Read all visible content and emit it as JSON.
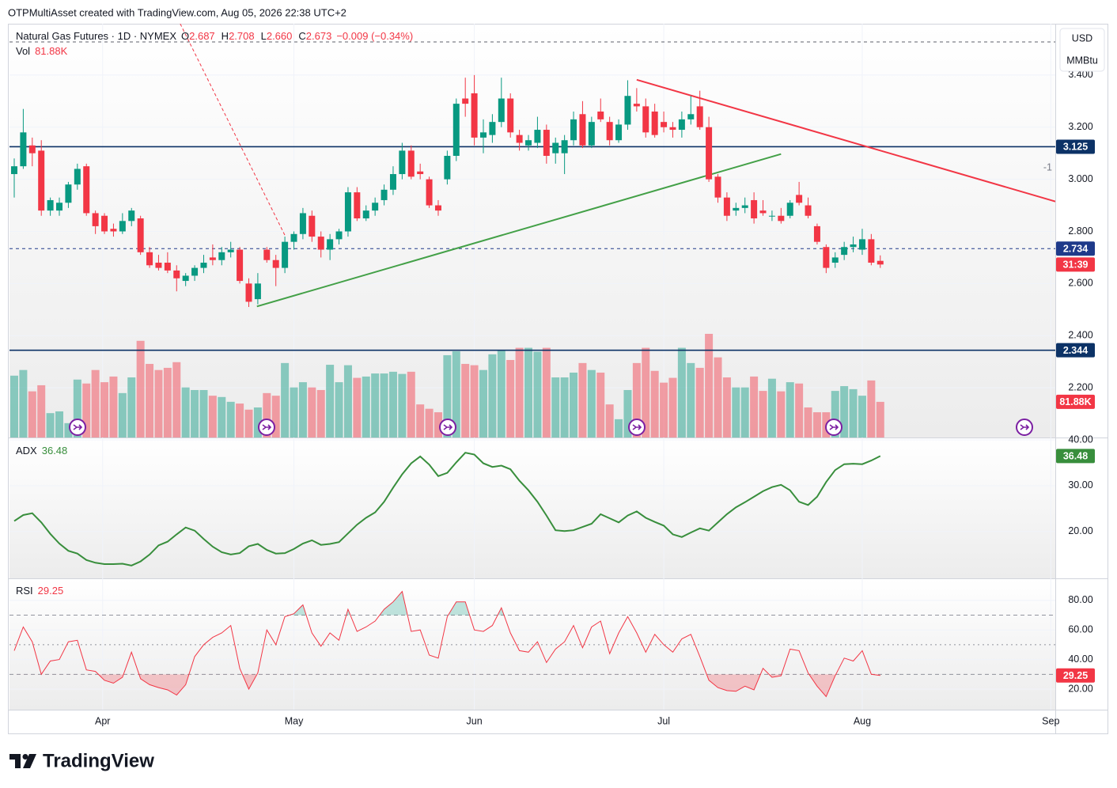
{
  "header": {
    "credit": "OTPMultiAsset created with TradingView.com, Aug 05, 2026 22:38 UTC+2"
  },
  "legend": {
    "symbol": "Natural Gas Futures · 1D · NYMEX",
    "fields": [
      [
        "O",
        "2.687"
      ],
      [
        "H",
        "2.708"
      ],
      [
        "L",
        "2.660"
      ],
      [
        "C",
        "2.673"
      ]
    ],
    "change": "−0.009 (−0.34%)"
  },
  "scale_units": [
    "USD",
    "MMBtu"
  ],
  "chart_data": [
    {
      "type": "candlestick",
      "up_color": "#089981",
      "down_color": "#f23645",
      "xlim": [
        -0.526,
        115.4
      ],
      "xticks": [
        {
          "value": 9.8,
          "label": "Apr"
        },
        {
          "value": 31,
          "label": "May"
        },
        {
          "value": 51,
          "label": "Jun"
        },
        {
          "value": 72,
          "label": "Jul"
        },
        {
          "value": 94,
          "label": "Aug"
        },
        {
          "value": 114.9,
          "label": "Sep"
        }
      ],
      "ylim": [
        2.009,
        3.597
      ],
      "yticks": [
        {
          "value": 3.4,
          "label": "3.400"
        },
        {
          "value": 3.2,
          "label": "3.200"
        },
        {
          "value": 3.0,
          "label": "3.000"
        },
        {
          "value": 2.8,
          "label": "2.800"
        },
        {
          "value": 2.6,
          "label": "2.600"
        },
        {
          "value": 2.4,
          "label": "2.400"
        },
        {
          "value": 2.2,
          "label": "2.200"
        }
      ],
      "side_note": "-1",
      "countdown": "31:39",
      "candles": [
        [
          3.02,
          3.08,
          2.93,
          3.05
        ],
        [
          3.05,
          3.27,
          3.04,
          3.18
        ],
        [
          3.13,
          3.16,
          3.05,
          3.1
        ],
        [
          3.11,
          3.15,
          2.86,
          2.88
        ],
        [
          2.88,
          2.93,
          2.86,
          2.92
        ],
        [
          2.88,
          2.93,
          2.86,
          2.91
        ],
        [
          2.91,
          2.99,
          2.89,
          2.98
        ],
        [
          2.98,
          3.06,
          2.96,
          3.04
        ],
        [
          3.05,
          3.06,
          2.86,
          2.87
        ],
        [
          2.87,
          2.88,
          2.79,
          2.82
        ],
        [
          2.86,
          2.87,
          2.79,
          2.8
        ],
        [
          2.81,
          2.83,
          2.78,
          2.8
        ],
        [
          2.8,
          2.87,
          2.79,
          2.84
        ],
        [
          2.84,
          2.89,
          2.82,
          2.88
        ],
        [
          2.85,
          2.86,
          2.71,
          2.72
        ],
        [
          2.72,
          2.74,
          2.66,
          2.67
        ],
        [
          2.68,
          2.71,
          2.65,
          2.66
        ],
        [
          2.68,
          2.72,
          2.64,
          2.65
        ],
        [
          2.65,
          2.67,
          2.57,
          2.62
        ],
        [
          2.61,
          2.64,
          2.59,
          2.63
        ],
        [
          2.63,
          2.67,
          2.61,
          2.66
        ],
        [
          2.66,
          2.71,
          2.64,
          2.68
        ],
        [
          2.7,
          2.75,
          2.67,
          2.69
        ],
        [
          2.69,
          2.74,
          2.67,
          2.72
        ],
        [
          2.72,
          2.76,
          2.7,
          2.73
        ],
        [
          2.73,
          2.74,
          2.6,
          2.61
        ],
        [
          2.6,
          2.62,
          2.51,
          2.53
        ],
        [
          2.54,
          2.64,
          2.52,
          2.6
        ],
        [
          2.73,
          2.74,
          2.68,
          2.69
        ],
        [
          2.69,
          2.71,
          2.59,
          2.66
        ],
        [
          2.66,
          2.78,
          2.64,
          2.76
        ],
        [
          2.76,
          2.8,
          2.73,
          2.79
        ],
        [
          2.79,
          2.89,
          2.77,
          2.87
        ],
        [
          2.86,
          2.88,
          2.76,
          2.78
        ],
        [
          2.78,
          2.8,
          2.7,
          2.73
        ],
        [
          2.73,
          2.79,
          2.69,
          2.77
        ],
        [
          2.77,
          2.81,
          2.75,
          2.8
        ],
        [
          2.8,
          2.97,
          2.78,
          2.95
        ],
        [
          2.95,
          2.97,
          2.84,
          2.85
        ],
        [
          2.85,
          2.9,
          2.84,
          2.88
        ],
        [
          2.88,
          2.93,
          2.86,
          2.91
        ],
        [
          2.92,
          2.98,
          2.9,
          2.96
        ],
        [
          2.96,
          3.05,
          2.94,
          3.02
        ],
        [
          3.02,
          3.14,
          3.0,
          3.11
        ],
        [
          3.11,
          3.13,
          3.0,
          3.01
        ],
        [
          3.03,
          3.06,
          3.0,
          3.02
        ],
        [
          3.0,
          3.01,
          2.89,
          2.9
        ],
        [
          2.9,
          2.92,
          2.86,
          2.88
        ],
        [
          3.0,
          3.11,
          2.98,
          3.09
        ],
        [
          3.09,
          3.31,
          3.07,
          3.29
        ],
        [
          3.31,
          3.39,
          3.24,
          3.29
        ],
        [
          3.33,
          3.4,
          3.13,
          3.16
        ],
        [
          3.16,
          3.23,
          3.1,
          3.18
        ],
        [
          3.17,
          3.25,
          3.14,
          3.22
        ],
        [
          3.22,
          3.39,
          3.2,
          3.31
        ],
        [
          3.31,
          3.33,
          3.16,
          3.18
        ],
        [
          3.17,
          3.19,
          3.11,
          3.14
        ],
        [
          3.13,
          3.17,
          3.11,
          3.15
        ],
        [
          3.14,
          3.24,
          3.12,
          3.19
        ],
        [
          3.19,
          3.21,
          3.06,
          3.09
        ],
        [
          3.1,
          3.16,
          3.06,
          3.14
        ],
        [
          3.1,
          3.17,
          3.02,
          3.15
        ],
        [
          3.15,
          3.26,
          3.13,
          3.23
        ],
        [
          3.25,
          3.3,
          3.12,
          3.13
        ],
        [
          3.13,
          3.24,
          3.12,
          3.22
        ],
        [
          3.26,
          3.31,
          3.22,
          3.23
        ],
        [
          3.22,
          3.24,
          3.13,
          3.15
        ],
        [
          3.15,
          3.23,
          3.14,
          3.21
        ],
        [
          3.21,
          3.38,
          3.19,
          3.32
        ],
        [
          3.29,
          3.35,
          3.26,
          3.28
        ],
        [
          3.28,
          3.31,
          3.16,
          3.18
        ],
        [
          3.26,
          3.29,
          3.16,
          3.17
        ],
        [
          3.22,
          3.26,
          3.18,
          3.2
        ],
        [
          3.2,
          3.22,
          3.16,
          3.19
        ],
        [
          3.19,
          3.26,
          3.16,
          3.23
        ],
        [
          3.23,
          3.32,
          3.21,
          3.25
        ],
        [
          3.28,
          3.34,
          3.19,
          3.2
        ],
        [
          3.2,
          3.24,
          2.99,
          3.0
        ],
        [
          3.01,
          3.02,
          2.91,
          2.93
        ],
        [
          2.93,
          2.95,
          2.84,
          2.86
        ],
        [
          2.88,
          2.91,
          2.86,
          2.89
        ],
        [
          2.89,
          2.93,
          2.87,
          2.9
        ],
        [
          2.92,
          2.95,
          2.83,
          2.85
        ],
        [
          2.88,
          2.92,
          2.86,
          2.87
        ],
        [
          2.86,
          2.88,
          2.84,
          2.86
        ],
        [
          2.86,
          2.89,
          2.83,
          2.84
        ],
        [
          2.86,
          2.92,
          2.85,
          2.91
        ],
        [
          2.94,
          2.99,
          2.9,
          2.91
        ],
        [
          2.9,
          2.93,
          2.85,
          2.86
        ],
        [
          2.82,
          2.83,
          2.75,
          2.76
        ],
        [
          2.74,
          2.75,
          2.64,
          2.66
        ],
        [
          2.68,
          2.72,
          2.66,
          2.7
        ],
        [
          2.71,
          2.76,
          2.69,
          2.74
        ],
        [
          2.74,
          2.78,
          2.72,
          2.75
        ],
        [
          2.73,
          2.81,
          2.71,
          2.77
        ],
        [
          2.77,
          2.79,
          2.67,
          2.68
        ],
        [
          2.687,
          2.708,
          2.66,
          2.673
        ]
      ],
      "volume": {
        "name": "Vol",
        "value_label_last": "81.88K",
        "lim": [
          0,
          950
        ],
        "values": [
          142,
          155,
          106,
          120,
          56,
          60,
          33,
          133,
          124,
          155,
          127,
          140,
          102,
          138,
          222,
          169,
          155,
          160,
          173,
          115,
          109,
          109,
          96,
          93,
          82,
          78,
          64,
          69,
          102,
          96,
          171,
          115,
          127,
          115,
          109,
          167,
          127,
          166,
          137,
          140,
          147,
          147,
          151,
          146,
          151,
          76,
          66,
          58,
          189,
          198,
          169,
          166,
          155,
          191,
          200,
          178,
          206,
          206,
          197,
          206,
          138,
          138,
          149,
          171,
          155,
          149,
          76,
          42,
          109,
          171,
          206,
          153,
          126,
          137,
          206,
          171,
          160,
          238,
          184,
          138,
          115,
          115,
          140,
          107,
          135,
          106,
          127,
          124,
          69,
          58,
          58,
          107,
          118,
          111,
          96,
          131,
          81.88
        ]
      },
      "hlines": [
        {
          "value": 3.527,
          "color": "#5d606b",
          "style": "dashed"
        },
        {
          "value": 3.125,
          "label": "3.125",
          "color": "#0c3266",
          "style": "solid"
        },
        {
          "value": 2.734,
          "label": "2.734",
          "color": "#1e3a8a",
          "style": "dashed"
        },
        {
          "value": 2.344,
          "label": "2.344",
          "color": "#0c3266",
          "style": "solid"
        }
      ],
      "drawings": [
        {
          "color": "#f23645",
          "style": "solid",
          "points": [
            [
              69,
              3.382
            ],
            [
              115.4,
              2.915
            ]
          ]
        },
        {
          "color": "#43a047",
          "style": "solid",
          "points": [
            [
              26.9,
              2.512
            ],
            [
              85,
              3.097
            ]
          ]
        },
        {
          "color": "#f23645",
          "style": "dashed",
          "points": [
            [
              18.4,
              3.597
            ],
            [
              30,
              2.785
            ]
          ]
        }
      ]
    },
    {
      "type": "line",
      "name": "ADX",
      "color": "#388e3c",
      "ylim": [
        9.8,
        40.0
      ],
      "yticks": [
        {
          "value": 40,
          "label": "40.00"
        },
        {
          "value": 30,
          "label": "30.00"
        },
        {
          "value": 20,
          "label": "20.00"
        }
      ],
      "values": [
        22.3,
        23.6,
        24.0,
        22.0,
        19.5,
        17.4,
        15.8,
        15.2,
        13.8,
        13.2,
        12.9,
        12.9,
        13.0,
        12.6,
        13.5,
        15.0,
        17.0,
        17.8,
        19.4,
        20.9,
        20.2,
        18.4,
        16.7,
        15.5,
        15.0,
        15.3,
        16.8,
        17.3,
        16.0,
        15.2,
        15.3,
        16.2,
        17.4,
        18.1,
        17.1,
        17.3,
        17.7,
        19.6,
        21.5,
        23.0,
        24.2,
        26.5,
        29.6,
        32.5,
        34.9,
        36.4,
        34.6,
        32.1,
        32.8,
        35.1,
        37.2,
        36.8,
        34.9,
        34.1,
        34.4,
        33.6,
        31.1,
        29.0,
        26.5,
        23.5,
        20.3,
        20.1,
        20.3,
        21.0,
        21.7,
        23.8,
        22.9,
        22.0,
        23.5,
        24.4,
        23.0,
        22.1,
        21.3,
        19.4,
        18.8,
        19.8,
        20.7,
        20.2,
        22.0,
        23.8,
        25.3,
        26.4,
        27.6,
        28.8,
        29.7,
        30.2,
        29.0,
        26.5,
        25.8,
        27.6,
        30.8,
        33.4,
        34.7,
        34.8,
        34.7,
        35.5,
        36.48
      ]
    },
    {
      "type": "line",
      "name": "RSI",
      "color": "#f23645",
      "ylim": [
        6.1,
        94.9
      ],
      "yticks": [
        {
          "value": 80,
          "label": "80.00"
        },
        {
          "value": 60,
          "label": "60.00"
        },
        {
          "value": 40,
          "label": "40.00"
        },
        {
          "value": 20,
          "label": "20.00"
        }
      ],
      "overbought": 70,
      "middle": 50,
      "oversold": 30,
      "values": [
        46,
        62,
        52,
        30,
        39,
        40,
        52,
        53,
        33,
        32,
        26,
        24,
        28,
        45,
        27,
        23,
        21,
        19.5,
        16,
        23,
        42,
        50,
        55,
        58,
        63,
        34,
        20,
        31,
        60,
        50,
        69,
        71,
        77,
        58,
        49,
        58,
        53,
        74,
        59,
        62,
        66,
        74,
        79,
        86,
        59,
        60,
        43,
        41,
        69,
        79,
        79,
        60,
        59,
        63,
        75,
        58,
        46,
        45,
        52,
        38,
        47,
        52,
        63,
        48,
        62,
        66,
        44,
        58,
        69,
        58,
        45,
        57,
        50,
        45,
        54,
        57,
        42,
        26,
        21,
        19,
        18.5,
        22,
        19.5,
        34,
        28,
        29,
        47,
        46,
        31,
        22,
        15,
        29,
        41,
        39,
        46,
        30,
        29.25
      ]
    }
  ],
  "footer": {
    "brand": "TradingView"
  }
}
